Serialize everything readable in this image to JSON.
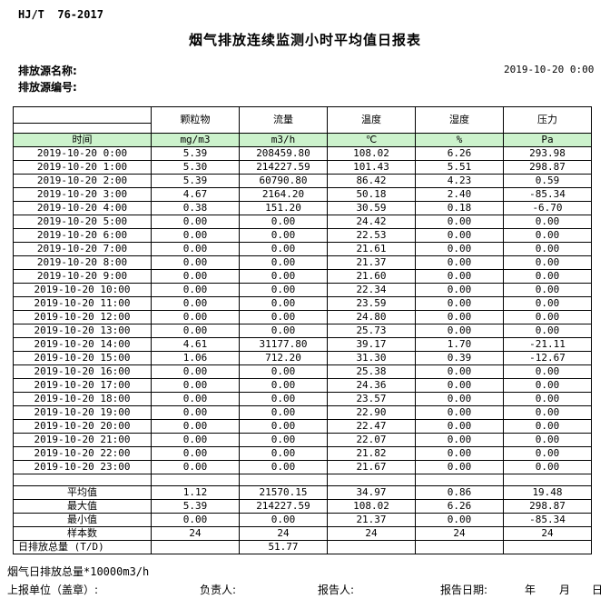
{
  "page": {
    "standard_code": "HJ/T  76-2017",
    "title": "烟气排放连续监测小时平均值日报表",
    "source_name_label": "排放源名称:",
    "source_id_label": "排放源编号:",
    "report_datetime": "2019-10-20 0:00"
  },
  "colors": {
    "header_row_green": "#ccf2cc"
  },
  "table": {
    "time_header": "时间",
    "pollutant_headers": [
      "颗粒物",
      "流量",
      "温度",
      "湿度",
      "压力"
    ],
    "unit_headers": [
      "mg/m3",
      "m3/h",
      "℃",
      "%",
      "Pa"
    ],
    "rows": [
      {
        "time": "2019-10-20 0:00",
        "values": [
          "5.39",
          "208459.80",
          "108.02",
          "6.26",
          "293.98"
        ]
      },
      {
        "time": "2019-10-20 1:00",
        "values": [
          "5.30",
          "214227.59",
          "101.43",
          "5.51",
          "298.87"
        ]
      },
      {
        "time": "2019-10-20 2:00",
        "values": [
          "5.39",
          "60790.80",
          "86.42",
          "4.23",
          "0.59"
        ]
      },
      {
        "time": "2019-10-20 3:00",
        "values": [
          "4.67",
          "2164.20",
          "50.18",
          "2.40",
          "-85.34"
        ]
      },
      {
        "time": "2019-10-20 4:00",
        "values": [
          "0.38",
          "151.20",
          "30.59",
          "0.18",
          "-6.70"
        ]
      },
      {
        "time": "2019-10-20 5:00",
        "values": [
          "0.00",
          "0.00",
          "24.42",
          "0.00",
          "0.00"
        ]
      },
      {
        "time": "2019-10-20 6:00",
        "values": [
          "0.00",
          "0.00",
          "22.53",
          "0.00",
          "0.00"
        ]
      },
      {
        "time": "2019-10-20 7:00",
        "values": [
          "0.00",
          "0.00",
          "21.61",
          "0.00",
          "0.00"
        ]
      },
      {
        "time": "2019-10-20 8:00",
        "values": [
          "0.00",
          "0.00",
          "21.37",
          "0.00",
          "0.00"
        ]
      },
      {
        "time": "2019-10-20 9:00",
        "values": [
          "0.00",
          "0.00",
          "21.60",
          "0.00",
          "0.00"
        ]
      },
      {
        "time": "2019-10-20 10:00",
        "values": [
          "0.00",
          "0.00",
          "22.34",
          "0.00",
          "0.00"
        ]
      },
      {
        "time": "2019-10-20 11:00",
        "values": [
          "0.00",
          "0.00",
          "23.59",
          "0.00",
          "0.00"
        ]
      },
      {
        "time": "2019-10-20 12:00",
        "values": [
          "0.00",
          "0.00",
          "24.80",
          "0.00",
          "0.00"
        ]
      },
      {
        "time": "2019-10-20 13:00",
        "values": [
          "0.00",
          "0.00",
          "25.73",
          "0.00",
          "0.00"
        ]
      },
      {
        "time": "2019-10-20 14:00",
        "values": [
          "4.61",
          "31177.80",
          "39.17",
          "1.70",
          "-21.11"
        ]
      },
      {
        "time": "2019-10-20 15:00",
        "values": [
          "1.06",
          "712.20",
          "31.30",
          "0.39",
          "-12.67"
        ]
      },
      {
        "time": "2019-10-20 16:00",
        "values": [
          "0.00",
          "0.00",
          "25.38",
          "0.00",
          "0.00"
        ]
      },
      {
        "time": "2019-10-20 17:00",
        "values": [
          "0.00",
          "0.00",
          "24.36",
          "0.00",
          "0.00"
        ]
      },
      {
        "time": "2019-10-20 18:00",
        "values": [
          "0.00",
          "0.00",
          "23.57",
          "0.00",
          "0.00"
        ]
      },
      {
        "time": "2019-10-20 19:00",
        "values": [
          "0.00",
          "0.00",
          "22.90",
          "0.00",
          "0.00"
        ]
      },
      {
        "time": "2019-10-20 20:00",
        "values": [
          "0.00",
          "0.00",
          "22.47",
          "0.00",
          "0.00"
        ]
      },
      {
        "time": "2019-10-20 21:00",
        "values": [
          "0.00",
          "0.00",
          "22.07",
          "0.00",
          "0.00"
        ]
      },
      {
        "time": "2019-10-20 22:00",
        "values": [
          "0.00",
          "0.00",
          "21.82",
          "0.00",
          "0.00"
        ]
      },
      {
        "time": "2019-10-20 23:00",
        "values": [
          "0.00",
          "0.00",
          "21.67",
          "0.00",
          "0.00"
        ]
      }
    ],
    "summary_rows": [
      {
        "label": "平均值",
        "align": "center",
        "values": [
          "1.12",
          "21570.15",
          "34.97",
          "0.86",
          "19.48"
        ]
      },
      {
        "label": "最大值",
        "align": "center",
        "values": [
          "5.39",
          "214227.59",
          "108.02",
          "6.26",
          "298.87"
        ]
      },
      {
        "label": "最小值",
        "align": "center",
        "values": [
          "0.00",
          "0.00",
          "21.37",
          "0.00",
          "-85.34"
        ]
      },
      {
        "label": "样本数",
        "align": "center",
        "values": [
          "24",
          "24",
          "24",
          "24",
          "24"
        ]
      },
      {
        "label": "日排放总量 (T/D)",
        "align": "left",
        "values": [
          "",
          "51.77",
          "",
          "",
          ""
        ]
      }
    ]
  },
  "footer": {
    "footnote": "烟气日排放总量*10000m3/h",
    "report_unit_label": "上报单位（盖章）:",
    "responsible_label": "负责人:",
    "reporter_label": "报告人:",
    "report_date_label": "报告日期:",
    "year_label": "年",
    "month_label": "月",
    "day_label": "日"
  }
}
